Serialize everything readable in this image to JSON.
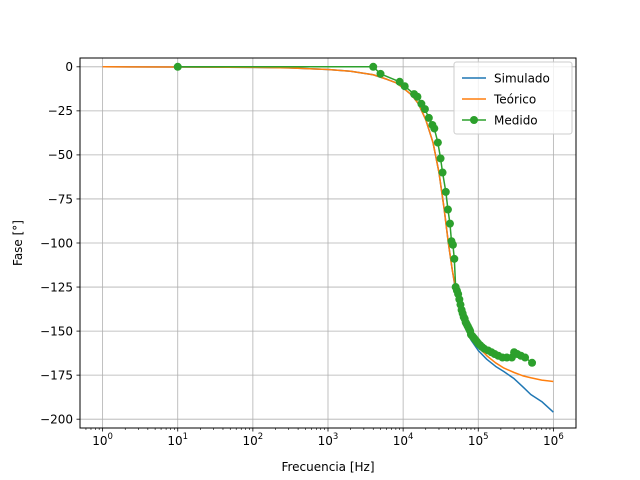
{
  "chart_data": {
    "type": "line",
    "xscale": "log",
    "xlabel": "Frecuencia [Hz]",
    "ylabel": "Fase [°]",
    "xlim": [
      0.5,
      2000000
    ],
    "ylim": [
      -205,
      5
    ],
    "grid": true,
    "legend_position": "top-right",
    "x_ticks": [
      {
        "value": 1,
        "base": "10",
        "exp": "0"
      },
      {
        "value": 10,
        "base": "10",
        "exp": "1"
      },
      {
        "value": 100,
        "base": "10",
        "exp": "2"
      },
      {
        "value": 1000,
        "base": "10",
        "exp": "3"
      },
      {
        "value": 10000,
        "base": "10",
        "exp": "4"
      },
      {
        "value": 100000,
        "base": "10",
        "exp": "5"
      },
      {
        "value": 1000000,
        "base": "10",
        "exp": "6"
      }
    ],
    "y_ticks": [
      {
        "value": 0,
        "label": "0"
      },
      {
        "value": -25,
        "label": "−25"
      },
      {
        "value": -50,
        "label": "−50"
      },
      {
        "value": -75,
        "label": "−75"
      },
      {
        "value": -100,
        "label": "−100"
      },
      {
        "value": -125,
        "label": "−125"
      },
      {
        "value": -150,
        "label": "−150"
      },
      {
        "value": -175,
        "label": "−175"
      },
      {
        "value": -200,
        "label": "−200"
      }
    ],
    "series": [
      {
        "name": "Simulado",
        "color": "#1f77b4",
        "marker": false,
        "x": [
          1,
          10,
          100,
          300,
          1000,
          2000,
          4000,
          6000,
          8000,
          10000,
          13000,
          16000,
          20000,
          25000,
          30000,
          35000,
          40000,
          45000,
          50000,
          55000,
          60000,
          70000,
          80000,
          100000,
          130000,
          170000,
          220000,
          300000,
          400000,
          500000,
          700000,
          1000000
        ],
        "y": [
          0,
          -0.1,
          -0.3,
          -0.6,
          -1.5,
          -2.5,
          -4.5,
          -7,
          -9,
          -12,
          -16,
          -21,
          -30,
          -43,
          -60,
          -80,
          -100,
          -115,
          -127,
          -135,
          -141,
          -149,
          -155,
          -161,
          -166,
          -170,
          -173,
          -177,
          -182,
          -186,
          -190,
          -196
        ]
      },
      {
        "name": "Teórico",
        "color": "#ff7f0e",
        "marker": false,
        "x": [
          1,
          10,
          100,
          300,
          1000,
          2000,
          4000,
          6000,
          8000,
          10000,
          13000,
          16000,
          20000,
          25000,
          30000,
          35000,
          40000,
          45000,
          50000,
          55000,
          60000,
          70000,
          80000,
          100000,
          130000,
          170000,
          220000,
          300000,
          400000,
          500000,
          700000,
          1000000
        ],
        "y": [
          0,
          -0.1,
          -0.3,
          -0.6,
          -1.5,
          -2.5,
          -4.5,
          -7,
          -9,
          -12,
          -16,
          -21,
          -30,
          -43,
          -60,
          -80,
          -100,
          -115,
          -126,
          -134,
          -140,
          -148,
          -153,
          -159,
          -164,
          -168,
          -171,
          -173.5,
          -175.5,
          -176.5,
          -177.8,
          -178.6
        ]
      },
      {
        "name": "Medido",
        "color": "#2ca02c",
        "marker": true,
        "x": [
          10,
          4000,
          5000,
          9000,
          10500,
          14000,
          15500,
          17500,
          19500,
          22000,
          24500,
          26000,
          29000,
          31500,
          33500,
          37000,
          39500,
          42000,
          44000,
          46000,
          48000,
          50000,
          52000,
          54000,
          56000,
          58000,
          60000,
          62000,
          64000,
          66000,
          68000,
          70000,
          72000,
          74000,
          76000,
          78000,
          80000,
          84000,
          88000,
          92000,
          96000,
          100000,
          106000,
          112000,
          120000,
          135000,
          150000,
          165000,
          185000,
          210000,
          240000,
          280000,
          300000,
          330000,
          370000,
          420000,
          520000
        ],
        "y": [
          0,
          0,
          -4,
          -8.5,
          -11,
          -15.5,
          -17,
          -21,
          -24,
          -29,
          -33,
          -35,
          -43,
          -52,
          -60,
          -71,
          -81,
          -89,
          -99,
          -101,
          -109,
          -125,
          -127,
          -129,
          -132,
          -135,
          -138,
          -140,
          -142,
          -143,
          -145,
          -146,
          -147,
          -148,
          -149,
          -150,
          -152,
          -153,
          -154,
          -155,
          -156,
          -157,
          -158,
          -159,
          -160,
          -161,
          -162,
          -163,
          -164,
          -165,
          -165,
          -165,
          -162,
          -163,
          -164,
          -165,
          -168
        ]
      }
    ]
  }
}
